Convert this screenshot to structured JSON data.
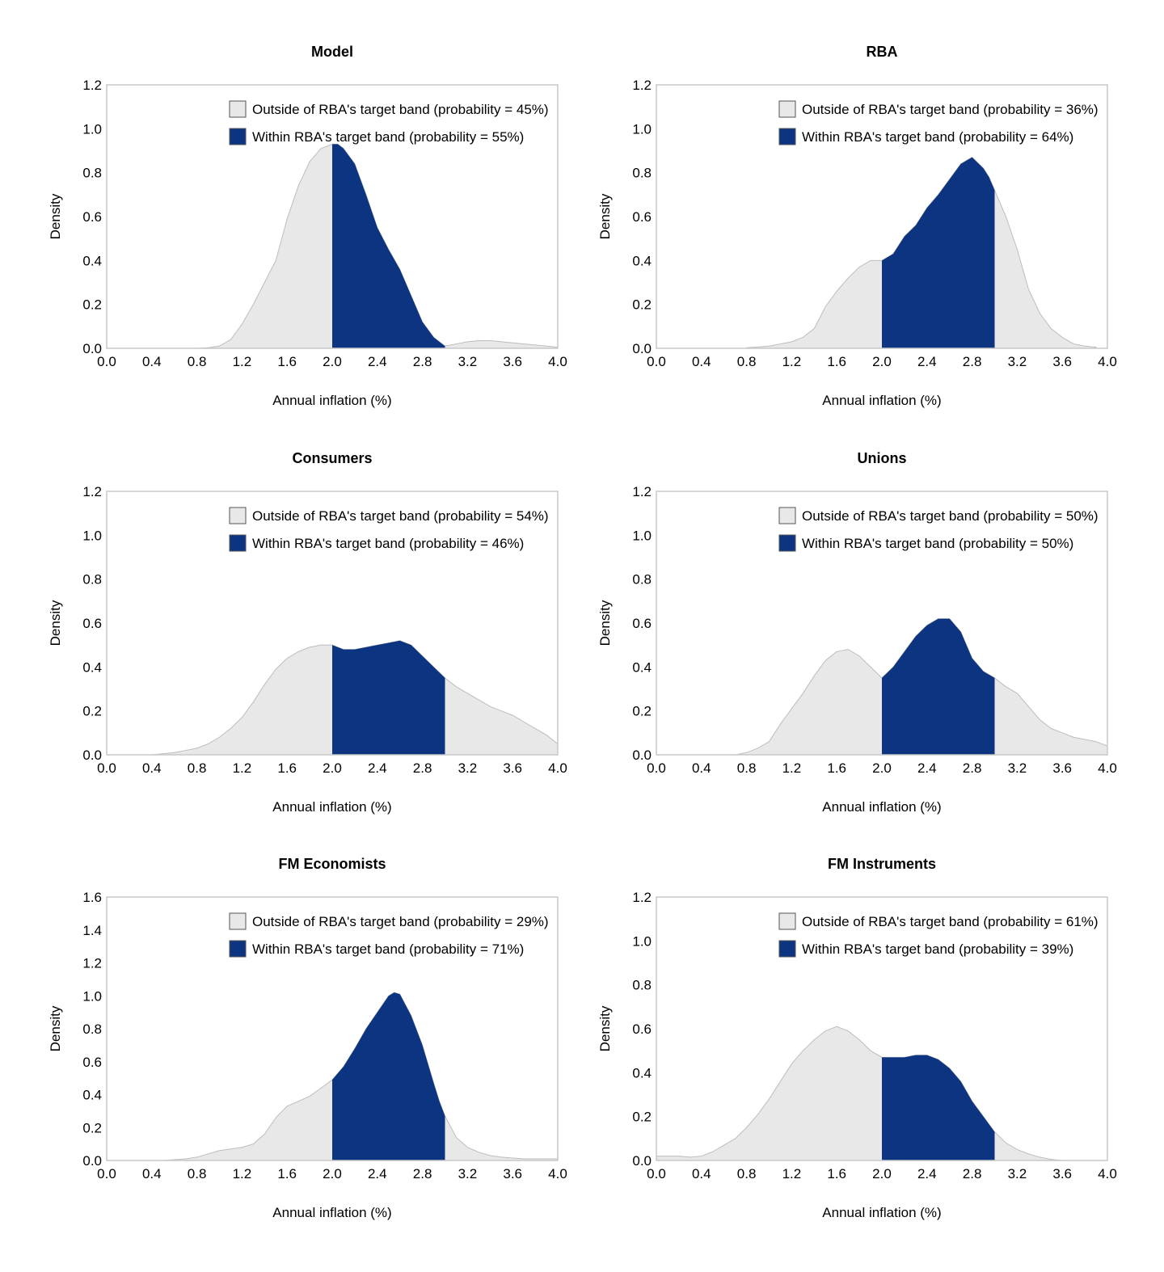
{
  "colors": {
    "outside": "#e8e8e8",
    "outside_stroke": "#bdbdbd",
    "within": "#0d3480",
    "frame": "#c8c8c8",
    "text": "#000000"
  },
  "chart_data": [
    {
      "type": "area",
      "title": "Model",
      "xlabel": "Annual inflation (%)",
      "ylabel": "Density",
      "xlim": [
        0,
        4
      ],
      "ylim": [
        0,
        1.2
      ],
      "xticks": [
        "0.0",
        "0.4",
        "0.8",
        "1.2",
        "1.6",
        "2.0",
        "2.4",
        "2.8",
        "3.2",
        "3.6",
        "4.0"
      ],
      "yticks": [
        "0.0",
        "0.2",
        "0.4",
        "0.6",
        "0.8",
        "1.0",
        "1.2"
      ],
      "band": [
        2.0,
        3.0
      ],
      "legend": [
        "Outside of RBA's target band (probability = 45%)",
        "Within RBA's target band (probability = 55%)"
      ],
      "legend_position": "top-right",
      "series": [
        {
          "x": [
            0,
            0.4,
            0.8,
            0.9,
            1.0,
            1.1,
            1.2,
            1.3,
            1.4,
            1.5,
            1.6,
            1.7,
            1.8,
            1.9,
            2.0,
            2.05,
            2.1,
            2.2,
            2.3,
            2.4,
            2.5,
            2.6,
            2.7,
            2.8,
            2.9,
            2.95,
            3.0,
            3.1,
            3.2,
            3.3,
            3.4,
            3.5,
            3.6,
            3.7,
            3.8,
            3.9,
            4.0
          ],
          "y": [
            0,
            0,
            0,
            0.003,
            0.01,
            0.04,
            0.11,
            0.2,
            0.3,
            0.4,
            0.59,
            0.74,
            0.85,
            0.91,
            0.93,
            0.93,
            0.91,
            0.84,
            0.7,
            0.55,
            0.45,
            0.36,
            0.24,
            0.12,
            0.05,
            0.03,
            0.01,
            0.02,
            0.03,
            0.035,
            0.035,
            0.03,
            0.025,
            0.02,
            0.015,
            0.01,
            0.005
          ]
        }
      ]
    },
    {
      "type": "area",
      "title": "RBA",
      "xlabel": "Annual inflation (%)",
      "ylabel": "Density",
      "xlim": [
        0,
        4
      ],
      "ylim": [
        0,
        1.2
      ],
      "xticks": [
        "0.0",
        "0.4",
        "0.8",
        "1.2",
        "1.6",
        "2.0",
        "2.4",
        "2.8",
        "3.2",
        "3.6",
        "4.0"
      ],
      "yticks": [
        "0.0",
        "0.2",
        "0.4",
        "0.6",
        "0.8",
        "1.0",
        "1.2"
      ],
      "band": [
        2.0,
        3.0
      ],
      "legend": [
        "Outside of RBA's target band (probability = 36%)",
        "Within RBA's target band (probability = 64%)"
      ],
      "legend_position": "top-right",
      "series": [
        {
          "x": [
            0.8,
            0.9,
            1.0,
            1.1,
            1.2,
            1.3,
            1.4,
            1.5,
            1.6,
            1.7,
            1.8,
            1.9,
            2.0,
            2.1,
            2.2,
            2.3,
            2.4,
            2.5,
            2.6,
            2.7,
            2.8,
            2.9,
            2.95,
            3.0,
            3.1,
            3.2,
            3.3,
            3.4,
            3.5,
            3.6,
            3.7,
            3.8,
            3.9
          ],
          "y": [
            0.003,
            0.006,
            0.01,
            0.02,
            0.03,
            0.05,
            0.09,
            0.19,
            0.26,
            0.32,
            0.37,
            0.4,
            0.4,
            0.43,
            0.51,
            0.56,
            0.64,
            0.7,
            0.77,
            0.84,
            0.87,
            0.82,
            0.78,
            0.72,
            0.6,
            0.45,
            0.27,
            0.16,
            0.09,
            0.05,
            0.02,
            0.01,
            0.005
          ]
        }
      ]
    },
    {
      "type": "area",
      "title": "Consumers",
      "xlabel": "Annual inflation (%)",
      "ylabel": "Density",
      "xlim": [
        0,
        4
      ],
      "ylim": [
        0,
        1.2
      ],
      "xticks": [
        "0.0",
        "0.4",
        "0.8",
        "1.2",
        "1.6",
        "2.0",
        "2.4",
        "2.8",
        "3.2",
        "3.6",
        "4.0"
      ],
      "yticks": [
        "0.0",
        "0.2",
        "0.4",
        "0.6",
        "0.8",
        "1.0",
        "1.2"
      ],
      "band": [
        2.0,
        3.0
      ],
      "legend": [
        "Outside of RBA's target band (probability = 54%)",
        "Within RBA's target band (probability = 46%)"
      ],
      "legend_position": "top-right",
      "series": [
        {
          "x": [
            0.4,
            0.5,
            0.6,
            0.7,
            0.8,
            0.9,
            1.0,
            1.1,
            1.2,
            1.3,
            1.4,
            1.5,
            1.6,
            1.7,
            1.8,
            1.9,
            2.0,
            2.1,
            2.2,
            2.3,
            2.4,
            2.5,
            2.6,
            2.7,
            2.8,
            2.9,
            3.0,
            3.1,
            3.2,
            3.3,
            3.4,
            3.5,
            3.6,
            3.7,
            3.8,
            3.9,
            4.0
          ],
          "y": [
            0,
            0.005,
            0.01,
            0.02,
            0.03,
            0.05,
            0.08,
            0.12,
            0.17,
            0.24,
            0.32,
            0.39,
            0.44,
            0.47,
            0.49,
            0.5,
            0.5,
            0.48,
            0.48,
            0.49,
            0.5,
            0.51,
            0.52,
            0.5,
            0.45,
            0.4,
            0.35,
            0.31,
            0.28,
            0.25,
            0.22,
            0.2,
            0.18,
            0.15,
            0.12,
            0.09,
            0.05
          ]
        }
      ]
    },
    {
      "type": "area",
      "title": "Unions",
      "xlabel": "Annual inflation (%)",
      "ylabel": "Density",
      "xlim": [
        0,
        4
      ],
      "ylim": [
        0,
        1.2
      ],
      "xticks": [
        "0.0",
        "0.4",
        "0.8",
        "1.2",
        "1.6",
        "2.0",
        "2.4",
        "2.8",
        "3.2",
        "3.6",
        "4.0"
      ],
      "yticks": [
        "0.0",
        "0.2",
        "0.4",
        "0.6",
        "0.8",
        "1.0",
        "1.2"
      ],
      "band": [
        2.0,
        3.0
      ],
      "legend": [
        "Outside of RBA's target band (probability = 50%)",
        "Within RBA's target band (probability = 50%)"
      ],
      "legend_position": "top-right",
      "series": [
        {
          "x": [
            0.7,
            0.8,
            0.9,
            1.0,
            1.1,
            1.2,
            1.3,
            1.4,
            1.5,
            1.6,
            1.7,
            1.8,
            1.9,
            2.0,
            2.1,
            2.2,
            2.3,
            2.4,
            2.5,
            2.6,
            2.7,
            2.8,
            2.9,
            3.0,
            3.1,
            3.2,
            3.3,
            3.4,
            3.5,
            3.6,
            3.7,
            3.8,
            3.9,
            4.0
          ],
          "y": [
            0,
            0.01,
            0.03,
            0.06,
            0.14,
            0.21,
            0.28,
            0.36,
            0.43,
            0.47,
            0.48,
            0.45,
            0.4,
            0.35,
            0.4,
            0.47,
            0.54,
            0.59,
            0.62,
            0.62,
            0.56,
            0.44,
            0.38,
            0.35,
            0.31,
            0.28,
            0.22,
            0.16,
            0.12,
            0.1,
            0.08,
            0.07,
            0.06,
            0.04
          ]
        }
      ]
    },
    {
      "type": "area",
      "title": "FM Economists",
      "xlabel": "Annual inflation (%)",
      "ylabel": "Density",
      "xlim": [
        0,
        4
      ],
      "ylim": [
        0,
        1.6
      ],
      "xticks": [
        "0.0",
        "0.4",
        "0.8",
        "1.2",
        "1.6",
        "2.0",
        "2.4",
        "2.8",
        "3.2",
        "3.6",
        "4.0"
      ],
      "yticks": [
        "0.0",
        "0.2",
        "0.4",
        "0.6",
        "0.8",
        "1.0",
        "1.2",
        "1.4",
        "1.6"
      ],
      "band": [
        2.0,
        3.0
      ],
      "legend": [
        "Outside of RBA's target band (probability = 29%)",
        "Within RBA's target band (probability = 71%)"
      ],
      "legend_position": "top-right",
      "series": [
        {
          "x": [
            0.5,
            0.6,
            0.7,
            0.8,
            0.9,
            1.0,
            1.1,
            1.2,
            1.3,
            1.4,
            1.5,
            1.6,
            1.7,
            1.8,
            1.9,
            2.0,
            2.1,
            2.2,
            2.3,
            2.4,
            2.5,
            2.55,
            2.6,
            2.7,
            2.8,
            2.9,
            2.95,
            3.0,
            3.1,
            3.2,
            3.3,
            3.4,
            3.5,
            3.6,
            3.7,
            3.8,
            3.9,
            4.0
          ],
          "y": [
            0,
            0.005,
            0.01,
            0.02,
            0.04,
            0.06,
            0.07,
            0.08,
            0.1,
            0.16,
            0.26,
            0.33,
            0.36,
            0.39,
            0.44,
            0.49,
            0.57,
            0.68,
            0.8,
            0.9,
            1.0,
            1.02,
            1.01,
            0.88,
            0.7,
            0.47,
            0.36,
            0.27,
            0.14,
            0.08,
            0.05,
            0.03,
            0.02,
            0.015,
            0.01,
            0.01,
            0.01,
            0.01
          ]
        }
      ]
    },
    {
      "type": "area",
      "title": "FM Instruments",
      "xlabel": "Annual inflation (%)",
      "ylabel": "Density",
      "xlim": [
        0,
        4
      ],
      "ylim": [
        0,
        1.2
      ],
      "xticks": [
        "0.0",
        "0.4",
        "0.8",
        "1.2",
        "1.6",
        "2.0",
        "2.4",
        "2.8",
        "3.2",
        "3.6",
        "4.0"
      ],
      "yticks": [
        "0.0",
        "0.2",
        "0.4",
        "0.6",
        "0.8",
        "1.0",
        "1.2"
      ],
      "band": [
        2.0,
        3.0
      ],
      "legend": [
        "Outside of RBA's target band (probability = 61%)",
        "Within RBA's target band (probability = 39%)"
      ],
      "legend_position": "top-right",
      "series": [
        {
          "x": [
            0.0,
            0.1,
            0.2,
            0.3,
            0.4,
            0.5,
            0.6,
            0.7,
            0.8,
            0.9,
            1.0,
            1.1,
            1.2,
            1.3,
            1.4,
            1.5,
            1.6,
            1.7,
            1.8,
            1.9,
            2.0,
            2.1,
            2.2,
            2.3,
            2.4,
            2.5,
            2.6,
            2.7,
            2.8,
            2.9,
            3.0,
            3.1,
            3.2,
            3.3,
            3.4,
            3.5,
            3.6
          ],
          "y": [
            0.02,
            0.02,
            0.02,
            0.015,
            0.02,
            0.04,
            0.07,
            0.1,
            0.15,
            0.21,
            0.28,
            0.36,
            0.44,
            0.5,
            0.55,
            0.59,
            0.61,
            0.59,
            0.55,
            0.5,
            0.47,
            0.47,
            0.47,
            0.48,
            0.48,
            0.46,
            0.42,
            0.36,
            0.27,
            0.2,
            0.13,
            0.08,
            0.05,
            0.03,
            0.015,
            0.005,
            0
          ]
        }
      ]
    }
  ]
}
